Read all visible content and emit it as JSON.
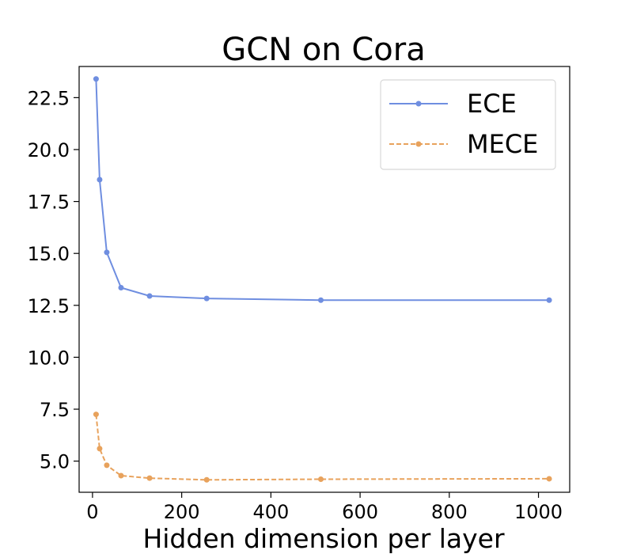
{
  "chart_data": {
    "type": "line",
    "title": "GCN on Cora",
    "xlabel": "Hidden dimension per layer",
    "ylabel": "",
    "xlim": [
      -30,
      1070
    ],
    "ylim": [
      3.5,
      24.0
    ],
    "xticks": [
      0,
      200,
      400,
      600,
      800,
      1000
    ],
    "yticks": [
      5.0,
      7.5,
      10.0,
      12.5,
      15.0,
      17.5,
      20.0,
      22.5
    ],
    "ytick_labels": [
      "5.0",
      "7.5",
      "10.0",
      "12.5",
      "15.0",
      "17.5",
      "20.0",
      "22.5"
    ],
    "grid": false,
    "legend_position": "top-right",
    "x": [
      8,
      16,
      32,
      64,
      128,
      256,
      512,
      1024
    ],
    "series": [
      {
        "name": "ECE",
        "color": "#6f8ee0",
        "style": "solid",
        "values": [
          23.4,
          18.55,
          15.05,
          13.35,
          12.95,
          12.83,
          12.75,
          12.75
        ]
      },
      {
        "name": "MECE",
        "color": "#e8a25c",
        "style": "dashed",
        "values": [
          7.25,
          5.6,
          4.8,
          4.3,
          4.18,
          4.1,
          4.13,
          4.15
        ]
      }
    ]
  }
}
